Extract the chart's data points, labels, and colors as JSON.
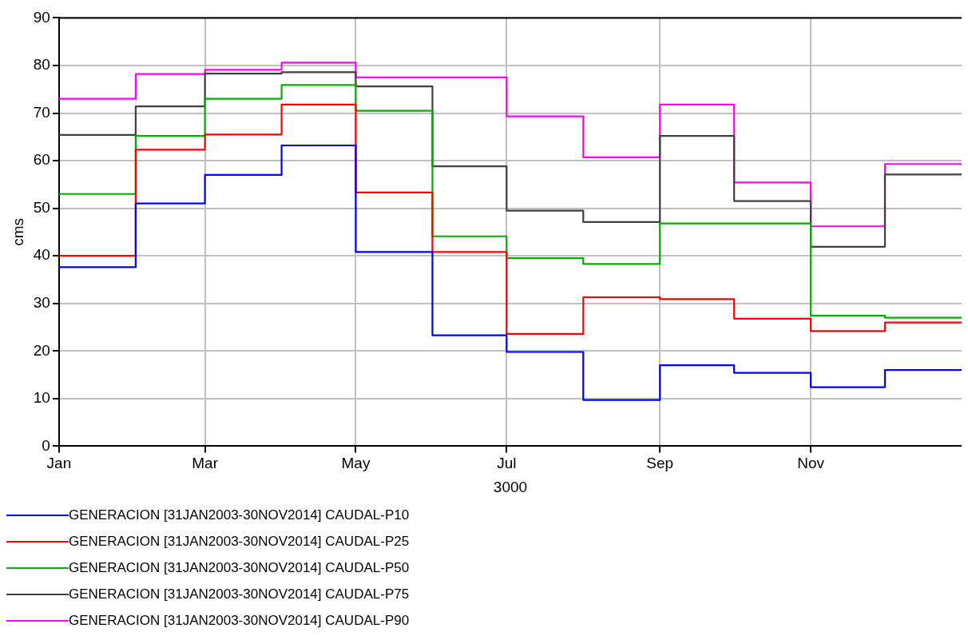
{
  "chart_data": {
    "type": "step",
    "xlabel": "3000",
    "ylabel": "cms",
    "x": [
      "3000-01",
      "3000-02",
      "3000-03",
      "3000-04",
      "3000-05",
      "3000-06",
      "3000-07",
      "3000-08",
      "3000-09",
      "3000-10",
      "3000-11",
      "3000-12",
      "3001-01"
    ],
    "xlim": [
      "3000-01-01",
      "3001-01-01"
    ],
    "xticks": [
      {
        "value": "3000-01-01",
        "label": "Jan"
      },
      {
        "value": "3000-03-01",
        "label": "Mar"
      },
      {
        "value": "3000-05-01",
        "label": "May"
      },
      {
        "value": "3000-07-01",
        "label": "Jul"
      },
      {
        "value": "3000-09-01",
        "label": "Sep"
      },
      {
        "value": "3000-11-01",
        "label": "Nov"
      }
    ],
    "ylim": [
      0,
      90
    ],
    "yticks": [
      0,
      10,
      20,
      30,
      40,
      50,
      60,
      70,
      80,
      90
    ],
    "grid": true,
    "legend": "bottom",
    "line_style": "solid",
    "marker": "none",
    "series": [
      {
        "name": "GENERACION [31JAN2003-30NOV2014] CAUDAL-P10",
        "color": "#0000ff",
        "values": [
          37.6,
          51,
          57,
          63.2,
          40.8,
          23.3,
          19.8,
          9.7,
          17,
          15.4,
          12.4,
          16,
          16
        ]
      },
      {
        "name": "GENERACION [31JAN2003-30NOV2014] CAUDAL-P25",
        "color": "#ff0000",
        "values": [
          40,
          62.3,
          65.5,
          71.8,
          53.3,
          40.8,
          23.6,
          31.3,
          30.9,
          26.8,
          24.2,
          26,
          26
        ]
      },
      {
        "name": "GENERACION [31JAN2003-30NOV2014] CAUDAL-P50",
        "color": "#00b000",
        "values": [
          53,
          65.2,
          73,
          75.9,
          70.5,
          44.1,
          39.5,
          38.3,
          46.8,
          46.8,
          27.4,
          27,
          27
        ]
      },
      {
        "name": "GENERACION [31JAN2003-30NOV2014] CAUDAL-P75",
        "color": "#404040",
        "values": [
          65.4,
          71.4,
          78.3,
          78.6,
          75.6,
          58.8,
          49.5,
          47.1,
          65.2,
          51.5,
          41.9,
          57.1,
          57.1
        ]
      },
      {
        "name": "GENERACION [31JAN2003-30NOV2014] CAUDAL-P90",
        "color": "#ff00ff",
        "values": [
          73,
          78.2,
          79.1,
          80.6,
          77.5,
          77.5,
          69.3,
          60.7,
          71.8,
          55.4,
          46.2,
          59.3,
          59.3
        ]
      }
    ]
  }
}
